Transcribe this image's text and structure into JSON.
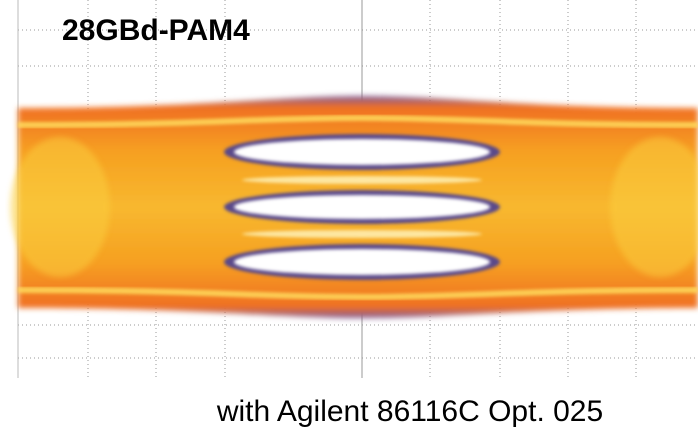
{
  "title": "28GBd-PAM4",
  "caption": "with Agilent 86116C Opt. 025"
}
